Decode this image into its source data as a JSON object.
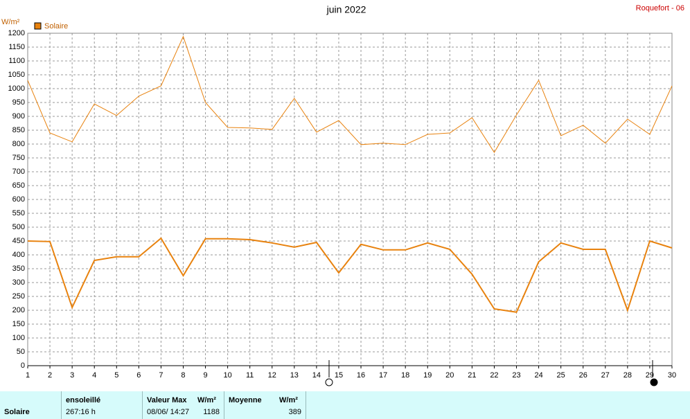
{
  "chart_data": {
    "type": "line",
    "title": "juin 2022",
    "station": "Roquefort - 06",
    "y_unit": "W/m²",
    "x": [
      1,
      2,
      3,
      4,
      5,
      6,
      7,
      8,
      9,
      10,
      11,
      12,
      13,
      14,
      15,
      16,
      17,
      18,
      19,
      20,
      21,
      22,
      23,
      24,
      25,
      26,
      27,
      28,
      29,
      30
    ],
    "xlim": [
      1,
      30
    ],
    "ylim": [
      0,
      1200
    ],
    "yticks": [
      0,
      50,
      100,
      150,
      200,
      250,
      300,
      350,
      400,
      450,
      500,
      550,
      600,
      650,
      700,
      750,
      800,
      850,
      900,
      950,
      1000,
      1050,
      1100,
      1150,
      1200
    ],
    "grid": true,
    "legend": "top-left",
    "series": [
      {
        "name": "Solaire",
        "color": "#e8820e",
        "values": [
          450,
          448,
          210,
          380,
          393,
          393,
          460,
          325,
          458,
          458,
          455,
          443,
          428,
          445,
          335,
          438,
          418,
          418,
          443,
          420,
          330,
          205,
          193,
          375,
          443,
          420,
          420,
          200,
          450,
          425
        ]
      },
      {
        "color": "#e8820e",
        "values": [
          1030,
          840,
          808,
          945,
          903,
          973,
          1010,
          1188,
          950,
          860,
          858,
          853,
          965,
          843,
          885,
          798,
          803,
          798,
          835,
          840,
          895,
          770,
          905,
          1030,
          830,
          868,
          803,
          890,
          835,
          1010
        ]
      }
    ]
  },
  "table": {
    "header": [
      "ensoleillé",
      "Valeur Max",
      "W/m²",
      "Moyenne",
      "W/m²"
    ],
    "row": [
      "Solaire",
      "267:16 h",
      "08/06/ 14:27",
      "1188",
      "389"
    ]
  }
}
